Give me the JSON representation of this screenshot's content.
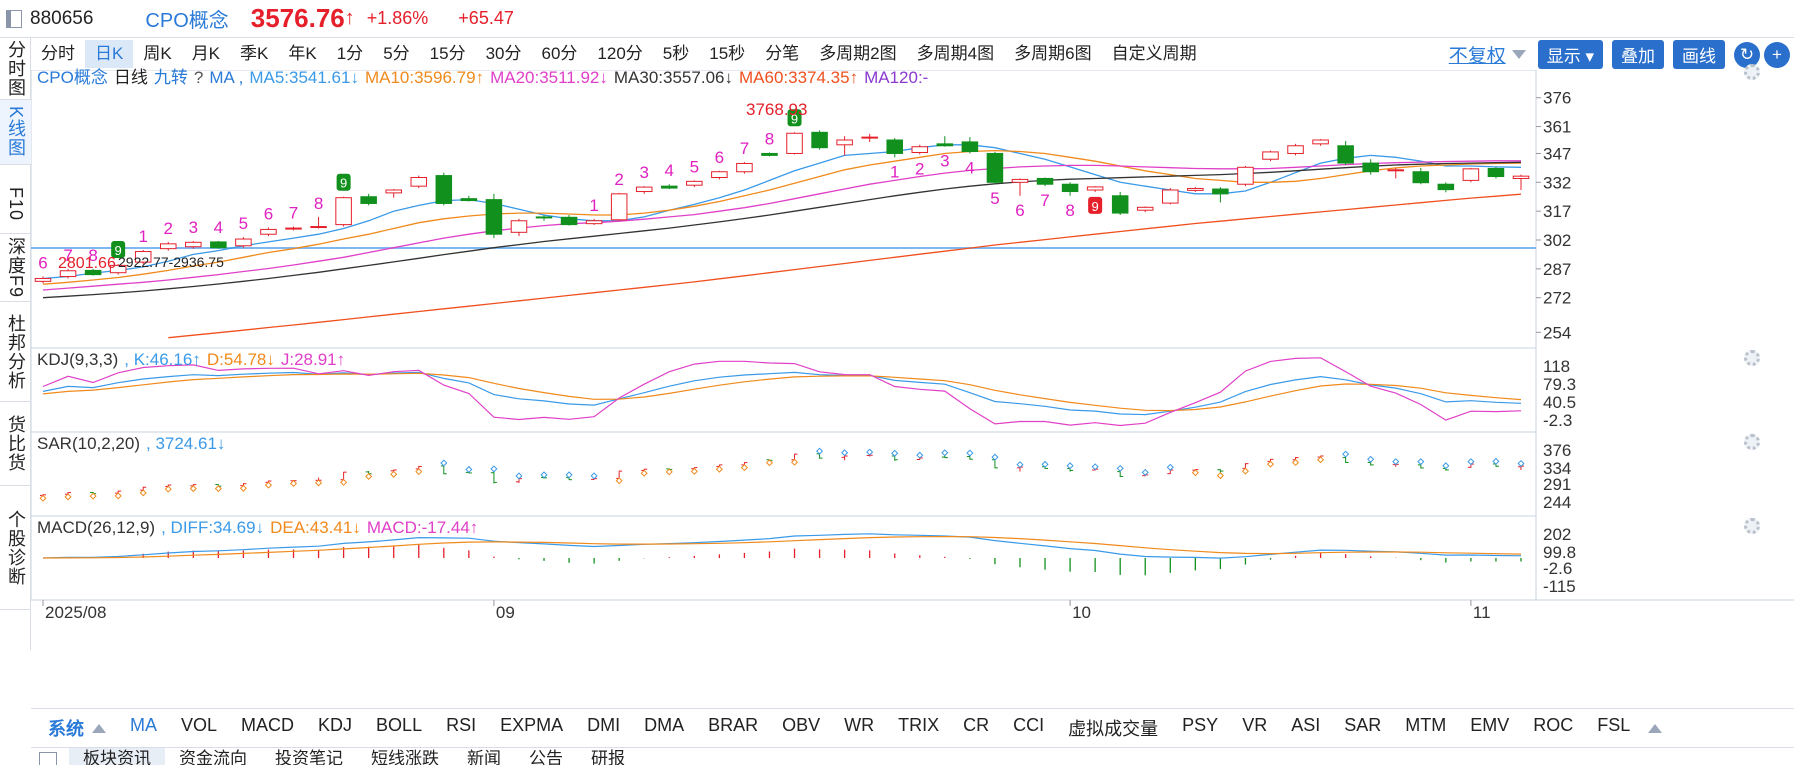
{
  "header": {
    "code": "880656",
    "name": "CPO概念",
    "price": "3576.76",
    "arrow": "↑",
    "pct": "+1.86%",
    "change": "+65.47"
  },
  "sidebar": [
    {
      "label": "分时图"
    },
    {
      "label": "K线图",
      "active": true
    },
    {
      "label": "F10"
    },
    {
      "label": "深度F9"
    },
    {
      "label": "杜邦分析"
    },
    {
      "label": "货比货"
    },
    {
      "label": "个股诊断"
    }
  ],
  "periods": [
    {
      "label": "分时"
    },
    {
      "label": "日K",
      "active": true
    },
    {
      "label": "周K"
    },
    {
      "label": "月K"
    },
    {
      "label": "季K"
    },
    {
      "label": "年K"
    },
    {
      "label": "1分"
    },
    {
      "label": "5分"
    },
    {
      "label": "15分"
    },
    {
      "label": "30分"
    },
    {
      "label": "60分"
    },
    {
      "label": "120分"
    },
    {
      "label": "5秒"
    },
    {
      "label": "15秒"
    },
    {
      "label": "分笔"
    },
    {
      "label": "多周期2图"
    },
    {
      "label": "多周期4图"
    },
    {
      "label": "多周期6图"
    },
    {
      "label": "自定义周期"
    }
  ],
  "controls": {
    "fuquan": "不复权",
    "show": "显示",
    "overlay": "叠加",
    "draw": "画线"
  },
  "main_legend": [
    {
      "text": "CPO概念",
      "color": "#2a7ad8"
    },
    {
      "text": "日线",
      "color": "#222"
    },
    {
      "text": "九转",
      "color": "#2a7ad8"
    },
    {
      "text": "?",
      "color": "#555"
    },
    {
      "text": "MA ,",
      "color": "#2a7ad8"
    },
    {
      "text": "MA5:3541.61↓",
      "color": "#3a9ae8"
    },
    {
      "text": "MA10:3596.79↑",
      "color": "#f08a1c"
    },
    {
      "text": "MA20:3511.92↓",
      "color": "#e040c8"
    },
    {
      "text": "MA30:3557.06↓",
      "color": "#333"
    },
    {
      "text": "MA60:3374.35↑",
      "color": "#f0501e"
    },
    {
      "text": "MA120:-",
      "color": "#8a3ad0"
    }
  ],
  "kdj_legend": [
    {
      "text": "KDJ(9,3,3)",
      "color": "#333"
    },
    {
      "text": ", K:46.16↑",
      "color": "#3a9ae8"
    },
    {
      "text": "D:54.78↓",
      "color": "#f08a1c"
    },
    {
      "text": "J:28.91↑",
      "color": "#e040c8"
    }
  ],
  "sar_legend": [
    {
      "text": "SAR(10,2,20)",
      "color": "#333"
    },
    {
      "text": ", 3724.61↓",
      "color": "#3a9ae8"
    }
  ],
  "macd_legend": [
    {
      "text": "MACD(26,12,9)",
      "color": "#333"
    },
    {
      "text": ", DIFF:34.69↓",
      "color": "#3a9ae8"
    },
    {
      "text": "DEA:43.41↓",
      "color": "#f08a1c"
    },
    {
      "text": "MACD:-17.44↑",
      "color": "#e040c8"
    }
  ],
  "axes": {
    "main": [
      "376",
      "361",
      "347",
      "332",
      "317",
      "302",
      "287",
      "272",
      "254"
    ],
    "kdj": [
      "118",
      "79.3",
      "40.5",
      "-2.3"
    ],
    "sar": [
      "376",
      "334",
      "291",
      "244"
    ],
    "macd": [
      "202",
      "99.8",
      "-2.6",
      "-115"
    ],
    "dates": [
      "2025/08",
      "09",
      "10",
      "11"
    ]
  },
  "annotations": {
    "low": "2801.66",
    "range": "2922.77-2936.75",
    "high": "3768.93"
  },
  "indicators": [
    {
      "label": "MA",
      "active": true
    },
    {
      "label": "VOL"
    },
    {
      "label": "MACD"
    },
    {
      "label": "KDJ"
    },
    {
      "label": "BOLL"
    },
    {
      "label": "RSI"
    },
    {
      "label": "EXPMA"
    },
    {
      "label": "DMI"
    },
    {
      "label": "DMA"
    },
    {
      "label": "BRAR"
    },
    {
      "label": "OBV"
    },
    {
      "label": "WR"
    },
    {
      "label": "TRIX"
    },
    {
      "label": "CR"
    },
    {
      "label": "CCI"
    },
    {
      "label": "虚拟成交量"
    },
    {
      "label": "PSY"
    },
    {
      "label": "VR"
    },
    {
      "label": "ASI"
    },
    {
      "label": "SAR"
    },
    {
      "label": "MTM"
    },
    {
      "label": "EMV"
    },
    {
      "label": "ROC"
    },
    {
      "label": "FSL"
    }
  ],
  "system_label": "系统",
  "tabs": [
    {
      "label": "板块资讯",
      "active": true
    },
    {
      "label": "资金流向"
    },
    {
      "label": "投资笔记"
    },
    {
      "label": "短线涨跌"
    },
    {
      "label": "新闻"
    },
    {
      "label": "公告"
    },
    {
      "label": "研报"
    }
  ],
  "chart_data": {
    "type": "candlestick",
    "x_labels": [
      "2025/08",
      "09",
      "10",
      "11"
    ],
    "candles": [
      {
        "o": 2805,
        "h": 2830,
        "l": 2795,
        "c": 2820
      },
      {
        "o": 2830,
        "h": 2870,
        "l": 2820,
        "c": 2860
      },
      {
        "o": 2862,
        "h": 2870,
        "l": 2835,
        "c": 2840
      },
      {
        "o": 2850,
        "h": 2895,
        "l": 2840,
        "c": 2888
      },
      {
        "o": 2905,
        "h": 2968,
        "l": 2895,
        "c": 2960
      },
      {
        "o": 2975,
        "h": 3010,
        "l": 2965,
        "c": 3000
      },
      {
        "o": 2985,
        "h": 3015,
        "l": 2975,
        "c": 3008
      },
      {
        "o": 3010,
        "h": 3015,
        "l": 2975,
        "c": 2980
      },
      {
        "o": 2990,
        "h": 3035,
        "l": 2980,
        "c": 3025
      },
      {
        "o": 3050,
        "h": 3085,
        "l": 3040,
        "c": 3075
      },
      {
        "o": 3080,
        "h": 3090,
        "l": 3070,
        "c": 3082
      },
      {
        "o": 3088,
        "h": 3140,
        "l": 3080,
        "c": 3090
      },
      {
        "o": 3100,
        "h": 3245,
        "l": 3090,
        "c": 3240
      },
      {
        "o": 3245,
        "h": 3260,
        "l": 3200,
        "c": 3210
      },
      {
        "o": 3265,
        "h": 3285,
        "l": 3240,
        "c": 3280
      },
      {
        "o": 3300,
        "h": 3355,
        "l": 3290,
        "c": 3345
      },
      {
        "o": 3355,
        "h": 3370,
        "l": 3200,
        "c": 3210
      },
      {
        "o": 3235,
        "h": 3250,
        "l": 3220,
        "c": 3225
      },
      {
        "o": 3230,
        "h": 3260,
        "l": 3030,
        "c": 3050
      },
      {
        "o": 3060,
        "h": 3130,
        "l": 3040,
        "c": 3120
      },
      {
        "o": 3140,
        "h": 3150,
        "l": 3120,
        "c": 3135
      },
      {
        "o": 3138,
        "h": 3150,
        "l": 3095,
        "c": 3100
      },
      {
        "o": 3105,
        "h": 3130,
        "l": 3098,
        "c": 3120
      },
      {
        "o": 3125,
        "h": 3265,
        "l": 3120,
        "c": 3260
      },
      {
        "o": 3272,
        "h": 3300,
        "l": 3260,
        "c": 3295
      },
      {
        "o": 3300,
        "h": 3310,
        "l": 3285,
        "c": 3290
      },
      {
        "o": 3305,
        "h": 3330,
        "l": 3295,
        "c": 3325
      },
      {
        "o": 3345,
        "h": 3380,
        "l": 3335,
        "c": 3375
      },
      {
        "o": 3375,
        "h": 3425,
        "l": 3365,
        "c": 3418
      },
      {
        "o": 3470,
        "h": 3475,
        "l": 3455,
        "c": 3460
      },
      {
        "o": 3470,
        "h": 3580,
        "l": 3465,
        "c": 3575
      },
      {
        "o": 3580,
        "h": 3590,
        "l": 3490,
        "c": 3500
      },
      {
        "o": 3515,
        "h": 3560,
        "l": 3460,
        "c": 3540
      },
      {
        "o": 3550,
        "h": 3572,
        "l": 3530,
        "c": 3555
      },
      {
        "o": 3540,
        "h": 3550,
        "l": 3450,
        "c": 3470
      },
      {
        "o": 3475,
        "h": 3515,
        "l": 3465,
        "c": 3505
      },
      {
        "o": 3520,
        "h": 3560,
        "l": 3505,
        "c": 3510
      },
      {
        "o": 3530,
        "h": 3555,
        "l": 3470,
        "c": 3480
      },
      {
        "o": 3470,
        "h": 3478,
        "l": 3310,
        "c": 3320
      },
      {
        "o": 3320,
        "h": 3340,
        "l": 3250,
        "c": 3335
      },
      {
        "o": 3340,
        "h": 3345,
        "l": 3300,
        "c": 3310
      },
      {
        "o": 3310,
        "h": 3320,
        "l": 3250,
        "c": 3272
      },
      {
        "o": 3280,
        "h": 3300,
        "l": 3270,
        "c": 3296
      },
      {
        "o": 3250,
        "h": 3270,
        "l": 3150,
        "c": 3160
      },
      {
        "o": 3175,
        "h": 3195,
        "l": 3165,
        "c": 3190
      },
      {
        "o": 3212,
        "h": 3290,
        "l": 3205,
        "c": 3280
      },
      {
        "o": 3278,
        "h": 3295,
        "l": 3270,
        "c": 3288
      },
      {
        "o": 3285,
        "h": 3295,
        "l": 3215,
        "c": 3260
      },
      {
        "o": 3310,
        "h": 3405,
        "l": 3300,
        "c": 3398
      },
      {
        "o": 3440,
        "h": 3485,
        "l": 3430,
        "c": 3478
      },
      {
        "o": 3470,
        "h": 3520,
        "l": 3460,
        "c": 3510
      },
      {
        "o": 3520,
        "h": 3545,
        "l": 3510,
        "c": 3540
      },
      {
        "o": 3510,
        "h": 3535,
        "l": 3410,
        "c": 3420
      },
      {
        "o": 3420,
        "h": 3440,
        "l": 3360,
        "c": 3375
      },
      {
        "o": 3380,
        "h": 3395,
        "l": 3340,
        "c": 3385
      },
      {
        "o": 3375,
        "h": 3395,
        "l": 3310,
        "c": 3318
      },
      {
        "o": 3310,
        "h": 3320,
        "l": 3268,
        "c": 3282
      },
      {
        "o": 3330,
        "h": 3395,
        "l": 3320,
        "c": 3390
      },
      {
        "o": 3392,
        "h": 3400,
        "l": 3340,
        "c": 3350
      },
      {
        "o": 3340,
        "h": 3360,
        "l": 3280,
        "c": 3352
      }
    ],
    "nine_labels": [
      {
        "i": 0,
        "t": "6"
      },
      {
        "i": 1,
        "t": "7"
      },
      {
        "i": 2,
        "t": "8"
      },
      {
        "i": 3,
        "t": "9",
        "flag": "green"
      },
      {
        "i": 4,
        "t": "1"
      },
      {
        "i": 5,
        "t": "2"
      },
      {
        "i": 6,
        "t": "3"
      },
      {
        "i": 7,
        "t": "4"
      },
      {
        "i": 8,
        "t": "5"
      },
      {
        "i": 9,
        "t": "6"
      },
      {
        "i": 10,
        "t": "7"
      },
      {
        "i": 11,
        "t": "8"
      },
      {
        "i": 12,
        "t": "9",
        "flag": "green"
      },
      {
        "i": 22,
        "t": "1"
      },
      {
        "i": 23,
        "t": "2"
      },
      {
        "i": 24,
        "t": "3"
      },
      {
        "i": 25,
        "t": "4"
      },
      {
        "i": 26,
        "t": "5"
      },
      {
        "i": 27,
        "t": "6"
      },
      {
        "i": 28,
        "t": "7"
      },
      {
        "i": 29,
        "t": "8"
      },
      {
        "i": 30,
        "t": "9",
        "flag": "green"
      },
      {
        "i": 34,
        "t": "1",
        "below": true
      },
      {
        "i": 35,
        "t": "2",
        "below": true
      },
      {
        "i": 36,
        "t": "3",
        "below": true
      },
      {
        "i": 37,
        "t": "4",
        "below": true
      },
      {
        "i": 38,
        "t": "5",
        "below": true
      },
      {
        "i": 39,
        "t": "6",
        "below": true
      },
      {
        "i": 40,
        "t": "7",
        "below": true
      },
      {
        "i": 41,
        "t": "8",
        "below": true
      },
      {
        "i": 42,
        "t": "9",
        "below": true,
        "flag": "red"
      }
    ],
    "ma": {
      "MA5": [
        2820,
        2830,
        2848,
        2862,
        2880,
        2910,
        2945,
        2965,
        2990,
        3010,
        3030,
        3050,
        3080,
        3120,
        3170,
        3200,
        3225,
        3230,
        3210,
        3180,
        3150,
        3130,
        3120,
        3120,
        3140,
        3175,
        3205,
        3240,
        3280,
        3330,
        3380,
        3420,
        3460,
        3470,
        3480,
        3500,
        3515,
        3515,
        3500,
        3470,
        3440,
        3400,
        3360,
        3320,
        3300,
        3280,
        3260,
        3260,
        3275,
        3320,
        3370,
        3420,
        3445,
        3460,
        3450,
        3430,
        3405,
        3405,
        3400,
        3398
      ],
      "MA10": [
        2790,
        2800,
        2812,
        2825,
        2842,
        2862,
        2885,
        2905,
        2930,
        2955,
        2975,
        2998,
        3025,
        3050,
        3080,
        3110,
        3130,
        3145,
        3155,
        3160,
        3160,
        3155,
        3150,
        3150,
        3160,
        3175,
        3195,
        3220,
        3250,
        3280,
        3315,
        3350,
        3385,
        3410,
        3430,
        3450,
        3470,
        3480,
        3485,
        3480,
        3470,
        3450,
        3430,
        3405,
        3380,
        3360,
        3340,
        3330,
        3320,
        3320,
        3325,
        3340,
        3360,
        3380,
        3395,
        3405,
        3410,
        3415,
        3418,
        3420
      ],
      "MA20": [
        2760,
        2770,
        2780,
        2790,
        2800,
        2812,
        2826,
        2840,
        2856,
        2872,
        2890,
        2910,
        2930,
        2955,
        2980,
        3005,
        3030,
        3050,
        3068,
        3082,
        3095,
        3105,
        3110,
        3118,
        3128,
        3140,
        3152,
        3170,
        3188,
        3210,
        3235,
        3260,
        3285,
        3310,
        3330,
        3350,
        3368,
        3382,
        3392,
        3400,
        3405,
        3408,
        3408,
        3405,
        3400,
        3396,
        3392,
        3390,
        3390,
        3392,
        3398,
        3405,
        3412,
        3418,
        3422,
        3425,
        3428,
        3430,
        3432,
        3432
      ],
      "MA30": [
        2720,
        2728,
        2736,
        2745,
        2755,
        2766,
        2778,
        2791,
        2805,
        2820,
        2836,
        2852,
        2870,
        2888,
        2906,
        2925,
        2944,
        2962,
        2980,
        2996,
        3012,
        3026,
        3040,
        3054,
        3068,
        3082,
        3098,
        3114,
        3132,
        3150,
        3170,
        3190,
        3210,
        3230,
        3250,
        3268,
        3285,
        3300,
        3312,
        3322,
        3330,
        3336,
        3340,
        3344,
        3348,
        3352,
        3356,
        3360,
        3366,
        3372,
        3380,
        3388,
        3396,
        3404,
        3410,
        3414,
        3418,
        3420,
        3422,
        3424
      ],
      "MA60": [
        null,
        null,
        null,
        null,
        null,
        2512,
        2525,
        2538,
        2551,
        2565,
        2578,
        2592,
        2606,
        2620,
        2634,
        2648,
        2662,
        2676,
        2690,
        2704,
        2718,
        2732,
        2746,
        2760,
        2774,
        2788,
        2802,
        2818,
        2834,
        2850,
        2866,
        2882,
        2898,
        2914,
        2930,
        2946,
        2962,
        2978,
        2994,
        3008,
        3022,
        3036,
        3050,
        3064,
        3078,
        3092,
        3106,
        3118,
        3130,
        3142,
        3154,
        3166,
        3178,
        3190,
        3202,
        3214,
        3226,
        3238,
        3248,
        3258
      ]
    }
  }
}
